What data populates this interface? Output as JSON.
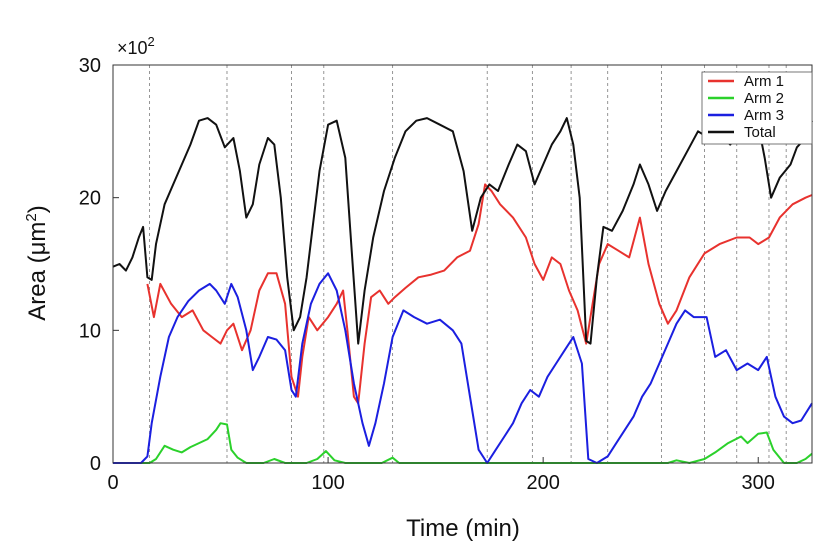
{
  "chart_data": {
    "type": "line",
    "xlabel": "Time (min)",
    "ylabel_main": "Area (μm",
    "ylabel_sup": "2",
    "ylabel_close": ")",
    "y_multiplier_base": "×10",
    "y_multiplier_exp": "2",
    "xlim": [
      0,
      325
    ],
    "ylim": [
      0,
      30
    ],
    "xticks": [
      0,
      100,
      200,
      300
    ],
    "yticks": [
      0,
      10,
      20,
      30
    ],
    "xtick_labels": [
      "0",
      "100",
      "200",
      "300"
    ],
    "ytick_labels": [
      "0",
      "10",
      "20",
      "30"
    ],
    "vlines": [
      17,
      53,
      83,
      98,
      130,
      174,
      195,
      213,
      230,
      255,
      275,
      290,
      305,
      313
    ],
    "legend_position": "top-right",
    "series": [
      {
        "name": "Arm 1",
        "color": "#e8322e",
        "points": [
          [
            16,
            13.5
          ],
          [
            19,
            11
          ],
          [
            22,
            13.5
          ],
          [
            27,
            12
          ],
          [
            32,
            11
          ],
          [
            37,
            11.5
          ],
          [
            42,
            10
          ],
          [
            46,
            9.5
          ],
          [
            50,
            9
          ],
          [
            53,
            10
          ],
          [
            56,
            10.5
          ],
          [
            60,
            8.5
          ],
          [
            64,
            10
          ],
          [
            68,
            13
          ],
          [
            72,
            14.3
          ],
          [
            76,
            14.3
          ],
          [
            80,
            12
          ],
          [
            83,
            6.5
          ],
          [
            86,
            5
          ],
          [
            88,
            8
          ],
          [
            91,
            11
          ],
          [
            95,
            10
          ],
          [
            100,
            11
          ],
          [
            104,
            12
          ],
          [
            107,
            13
          ],
          [
            109,
            10
          ],
          [
            112,
            5
          ],
          [
            114,
            4.5
          ],
          [
            117,
            9
          ],
          [
            120,
            12.5
          ],
          [
            124,
            13
          ],
          [
            128,
            12
          ],
          [
            131,
            12.5
          ],
          [
            136,
            13.2
          ],
          [
            142,
            14
          ],
          [
            148,
            14.2
          ],
          [
            154,
            14.5
          ],
          [
            160,
            15.5
          ],
          [
            166,
            16
          ],
          [
            170,
            18
          ],
          [
            173,
            21
          ],
          [
            176,
            20.5
          ],
          [
            180,
            19.5
          ],
          [
            186,
            18.5
          ],
          [
            192,
            17
          ],
          [
            196,
            15
          ],
          [
            200,
            13.8
          ],
          [
            204,
            15.5
          ],
          [
            208,
            15
          ],
          [
            212,
            13
          ],
          [
            216,
            11.5
          ],
          [
            220,
            9
          ],
          [
            223,
            12
          ],
          [
            226,
            15
          ],
          [
            230,
            16.5
          ],
          [
            235,
            16
          ],
          [
            240,
            15.5
          ],
          [
            245,
            18.5
          ],
          [
            249,
            15
          ],
          [
            254,
            12
          ],
          [
            258,
            10.5
          ],
          [
            262,
            11.5
          ],
          [
            268,
            14
          ],
          [
            275,
            15.8
          ],
          [
            282,
            16.5
          ],
          [
            290,
            17
          ],
          [
            296,
            17
          ],
          [
            300,
            16.5
          ],
          [
            305,
            17
          ],
          [
            310,
            18.5
          ],
          [
            316,
            19.5
          ],
          [
            322,
            20
          ],
          [
            325,
            20.2
          ]
        ]
      },
      {
        "name": "Arm 2",
        "color": "#2bd12b",
        "points": [
          [
            0,
            0
          ],
          [
            17,
            0
          ],
          [
            20,
            0.3
          ],
          [
            24,
            1.3
          ],
          [
            28,
            1
          ],
          [
            32,
            0.8
          ],
          [
            36,
            1.2
          ],
          [
            40,
            1.5
          ],
          [
            44,
            1.8
          ],
          [
            48,
            2.5
          ],
          [
            50,
            3
          ],
          [
            53,
            2.9
          ],
          [
            55,
            1
          ],
          [
            58,
            0.4
          ],
          [
            62,
            0
          ],
          [
            70,
            0
          ],
          [
            75,
            0.3
          ],
          [
            80,
            0
          ],
          [
            90,
            0
          ],
          [
            95,
            0.3
          ],
          [
            99,
            0.9
          ],
          [
            103,
            0.2
          ],
          [
            108,
            0
          ],
          [
            125,
            0
          ],
          [
            130,
            0.4
          ],
          [
            133,
            0
          ],
          [
            250,
            0
          ],
          [
            258,
            0
          ],
          [
            262,
            0.2
          ],
          [
            268,
            0
          ],
          [
            275,
            0.3
          ],
          [
            280,
            0.8
          ],
          [
            286,
            1.5
          ],
          [
            292,
            2
          ],
          [
            295,
            1.5
          ],
          [
            300,
            2.2
          ],
          [
            304,
            2.3
          ],
          [
            307,
            1
          ],
          [
            312,
            0
          ],
          [
            318,
            0
          ],
          [
            322,
            0.3
          ],
          [
            325,
            0.7
          ]
        ]
      },
      {
        "name": "Arm 3",
        "color": "#1b1fe0",
        "points": [
          [
            0,
            0
          ],
          [
            13,
            0
          ],
          [
            16,
            0.5
          ],
          [
            18,
            3
          ],
          [
            22,
            6.5
          ],
          [
            26,
            9.5
          ],
          [
            30,
            11
          ],
          [
            35,
            12.2
          ],
          [
            40,
            13
          ],
          [
            45,
            13.5
          ],
          [
            48,
            13
          ],
          [
            52,
            12
          ],
          [
            55,
            13.5
          ],
          [
            58,
            12.5
          ],
          [
            62,
            10
          ],
          [
            65,
            7
          ],
          [
            68,
            8
          ],
          [
            72,
            9.5
          ],
          [
            76,
            9.3
          ],
          [
            80,
            8.5
          ],
          [
            83,
            5.5
          ],
          [
            85,
            5
          ],
          [
            88,
            9
          ],
          [
            92,
            12
          ],
          [
            96,
            13.5
          ],
          [
            100,
            14.3
          ],
          [
            104,
            13
          ],
          [
            108,
            10
          ],
          [
            112,
            6
          ],
          [
            116,
            3
          ],
          [
            119,
            1.3
          ],
          [
            122,
            3
          ],
          [
            126,
            6
          ],
          [
            130,
            9.5
          ],
          [
            135,
            11.5
          ],
          [
            140,
            11
          ],
          [
            146,
            10.5
          ],
          [
            152,
            10.8
          ],
          [
            158,
            10
          ],
          [
            162,
            9
          ],
          [
            166,
            5
          ],
          [
            170,
            1
          ],
          [
            174,
            0
          ],
          [
            178,
            1
          ],
          [
            182,
            2
          ],
          [
            186,
            3
          ],
          [
            190,
            4.5
          ],
          [
            194,
            5.5
          ],
          [
            198,
            5
          ],
          [
            202,
            6.5
          ],
          [
            206,
            7.5
          ],
          [
            210,
            8.5
          ],
          [
            214,
            9.5
          ],
          [
            218,
            7.5
          ],
          [
            221,
            0.3
          ],
          [
            225,
            0
          ],
          [
            230,
            0.5
          ],
          [
            234,
            1.5
          ],
          [
            238,
            2.5
          ],
          [
            242,
            3.5
          ],
          [
            246,
            5
          ],
          [
            250,
            6
          ],
          [
            254,
            7.5
          ],
          [
            258,
            9
          ],
          [
            262,
            10.5
          ],
          [
            266,
            11.5
          ],
          [
            270,
            11
          ],
          [
            276,
            11
          ],
          [
            280,
            8
          ],
          [
            285,
            8.5
          ],
          [
            290,
            7
          ],
          [
            295,
            7.5
          ],
          [
            300,
            7
          ],
          [
            304,
            8
          ],
          [
            308,
            5
          ],
          [
            312,
            3.5
          ],
          [
            316,
            3
          ],
          [
            320,
            3.2
          ],
          [
            325,
            4.5
          ]
        ]
      },
      {
        "name": "Total",
        "color": "#111111",
        "points": [
          [
            0,
            14.8
          ],
          [
            3,
            15
          ],
          [
            6,
            14.5
          ],
          [
            9,
            15.5
          ],
          [
            12,
            17
          ],
          [
            14,
            17.8
          ],
          [
            16,
            14
          ],
          [
            18,
            13.8
          ],
          [
            20,
            16.5
          ],
          [
            24,
            19.5
          ],
          [
            28,
            21
          ],
          [
            32,
            22.5
          ],
          [
            36,
            24
          ],
          [
            40,
            25.8
          ],
          [
            44,
            26
          ],
          [
            48,
            25.5
          ],
          [
            52,
            23.8
          ],
          [
            56,
            24.5
          ],
          [
            59,
            22
          ],
          [
            62,
            18.5
          ],
          [
            65,
            19.5
          ],
          [
            68,
            22.5
          ],
          [
            72,
            24.5
          ],
          [
            75,
            24
          ],
          [
            78,
            20
          ],
          [
            81,
            14
          ],
          [
            84,
            10
          ],
          [
            87,
            11
          ],
          [
            90,
            14
          ],
          [
            93,
            18
          ],
          [
            96,
            22
          ],
          [
            100,
            25.5
          ],
          [
            104,
            25.8
          ],
          [
            108,
            23
          ],
          [
            111,
            16
          ],
          [
            114,
            9
          ],
          [
            117,
            13
          ],
          [
            121,
            17
          ],
          [
            126,
            20.5
          ],
          [
            131,
            23
          ],
          [
            136,
            25
          ],
          [
            141,
            25.8
          ],
          [
            146,
            26
          ],
          [
            152,
            25.5
          ],
          [
            158,
            25
          ],
          [
            163,
            22
          ],
          [
            167,
            17.5
          ],
          [
            171,
            20
          ],
          [
            175,
            21
          ],
          [
            179,
            20.5
          ],
          [
            184,
            22.5
          ],
          [
            188,
            24
          ],
          [
            192,
            23.5
          ],
          [
            196,
            21
          ],
          [
            200,
            22.5
          ],
          [
            204,
            24
          ],
          [
            208,
            25
          ],
          [
            211,
            26
          ],
          [
            214,
            24
          ],
          [
            217,
            20
          ],
          [
            220,
            9.2
          ],
          [
            222,
            9
          ],
          [
            225,
            14
          ],
          [
            228,
            17.8
          ],
          [
            232,
            17.5
          ],
          [
            237,
            19
          ],
          [
            242,
            21
          ],
          [
            245,
            22.5
          ],
          [
            249,
            21
          ],
          [
            253,
            19
          ],
          [
            257,
            20.5
          ],
          [
            262,
            22
          ],
          [
            267,
            23.5
          ],
          [
            272,
            25
          ],
          [
            277,
            24.5
          ],
          [
            282,
            24.8
          ],
          [
            287,
            24
          ],
          [
            291,
            25
          ],
          [
            295,
            25.2
          ],
          [
            300,
            25.5
          ],
          [
            303,
            23
          ],
          [
            306,
            20
          ],
          [
            310,
            21.5
          ],
          [
            315,
            22.5
          ],
          [
            318,
            23.8
          ],
          [
            322,
            24.5
          ],
          [
            325,
            25.8
          ]
        ]
      }
    ]
  }
}
